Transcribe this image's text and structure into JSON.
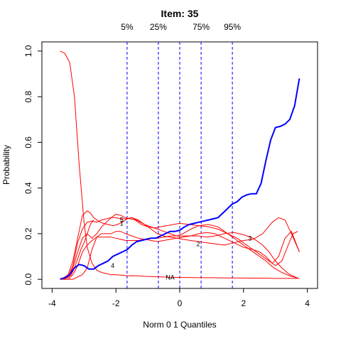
{
  "chart_data": {
    "type": "line",
    "title": "Item:  35",
    "xlabel": "Norm 0 1 Quantiles",
    "ylabel": "Probability",
    "xlim": [
      -4,
      4
    ],
    "ylim": [
      0,
      1
    ],
    "x_ticks": [
      -4,
      -2,
      0,
      2,
      4
    ],
    "x_tick_labels": [
      "-4",
      "-2",
      "0",
      "2",
      "4"
    ],
    "y_ticks": [
      0,
      0.2,
      0.4,
      0.6,
      0.8,
      1.0
    ],
    "y_tick_labels": [
      "0.0",
      "0.2",
      "0.4",
      "0.6",
      "0.8",
      "1.0"
    ],
    "grid": false,
    "quantiles": [
      {
        "label": "5%",
        "x": -1.65
      },
      {
        "label": "25%",
        "x": -0.67
      },
      {
        "label": "",
        "x": 0.0
      },
      {
        "label": "75%",
        "x": 0.67
      },
      {
        "label": "95%",
        "x": 1.65
      }
    ],
    "colors": {
      "options": "#ff0000",
      "key": "#0000ff",
      "quantile_lines": "#0000ff"
    },
    "series": [
      {
        "name": "4",
        "label_at": [
          -2.1,
          0.06
        ],
        "x": [
          -3.75,
          -3.6,
          -3.45,
          -3.3,
          -3.15,
          -3.0,
          -2.9,
          -2.75,
          -2.6,
          -2.45,
          -2.3,
          -2.15,
          -2.0,
          -1.8,
          -1.65,
          -1.5,
          -1.3,
          -1.1,
          -0.9,
          -0.7,
          -0.5,
          -0.3,
          0.0,
          0.3,
          0.6,
          1.0,
          1.4,
          1.8,
          2.2,
          2.6,
          3.0,
          3.3,
          3.5,
          3.75
        ],
        "values": [
          1.0,
          0.99,
          0.95,
          0.8,
          0.5,
          0.25,
          0.14,
          0.07,
          0.04,
          0.03,
          0.025,
          0.02,
          0.02,
          0.018,
          0.015,
          0.016,
          0.015,
          0.013,
          0.012,
          0.011,
          0.01,
          0.009,
          0.008,
          0.008,
          0.007,
          0.007,
          0.006,
          0.006,
          0.005,
          0.005,
          0.004,
          0.004,
          0.004,
          0.004
        ]
      },
      {
        "name": "5",
        "label_at": [
          -1.82,
          0.26
        ],
        "x": [
          -3.7,
          -3.5,
          -3.35,
          -3.2,
          -3.05,
          -2.9,
          -2.75,
          -2.6,
          -2.45,
          -2.3,
          -2.15,
          -2.0,
          -1.85,
          -1.7,
          -1.55,
          -1.4,
          -1.2,
          -1.0,
          -0.8,
          -0.6,
          -0.4,
          -0.2,
          0.0,
          0.3,
          0.6,
          0.9,
          1.2,
          1.5,
          1.8,
          2.1,
          2.4,
          2.7,
          3.0,
          3.2,
          3.4,
          3.55,
          3.7
        ],
        "values": [
          0.0,
          0.01,
          0.05,
          0.12,
          0.18,
          0.2,
          0.18,
          0.2,
          0.23,
          0.25,
          0.27,
          0.285,
          0.28,
          0.27,
          0.265,
          0.26,
          0.24,
          0.23,
          0.225,
          0.23,
          0.235,
          0.24,
          0.245,
          0.24,
          0.235,
          0.23,
          0.22,
          0.2,
          0.18,
          0.15,
          0.12,
          0.09,
          0.06,
          0.08,
          0.15,
          0.2,
          0.21
        ]
      },
      {
        "name": "1",
        "label_at": [
          -1.82,
          0.245
        ],
        "x": [
          -3.7,
          -3.5,
          -3.35,
          -3.2,
          -3.05,
          -2.9,
          -2.75,
          -2.6,
          -2.45,
          -2.3,
          -2.15,
          -2.0,
          -1.85,
          -1.7,
          -1.5,
          -1.3,
          -1.1,
          -0.9,
          -0.7,
          -0.5,
          -0.3,
          -0.1,
          0.1,
          0.35,
          0.6,
          0.9,
          1.2,
          1.5,
          1.8,
          2.1,
          2.4,
          2.7,
          2.95,
          3.2,
          3.45,
          3.7
        ],
        "values": [
          0.0,
          0.01,
          0.06,
          0.16,
          0.22,
          0.25,
          0.255,
          0.25,
          0.26,
          0.265,
          0.27,
          0.27,
          0.265,
          0.265,
          0.27,
          0.255,
          0.24,
          0.23,
          0.22,
          0.21,
          0.2,
          0.19,
          0.2,
          0.22,
          0.235,
          0.24,
          0.23,
          0.2,
          0.17,
          0.14,
          0.11,
          0.08,
          0.05,
          0.03,
          0.015,
          0.005
        ]
      },
      {
        "name": "2",
        "label_at": [
          0.58,
          0.155
        ],
        "x": [
          -3.7,
          -3.5,
          -3.35,
          -3.2,
          -3.05,
          -2.9,
          -2.8,
          -2.7,
          -2.55,
          -2.4,
          -2.25,
          -2.1,
          -1.95,
          -1.8,
          -1.65,
          -1.5,
          -1.3,
          -1.1,
          -0.9,
          -0.7,
          -0.5,
          -0.3,
          -0.1,
          0.1,
          0.35,
          0.6,
          0.85,
          1.1,
          1.4,
          1.7,
          2.0,
          2.3,
          2.6,
          2.9,
          3.1,
          3.3,
          3.5,
          3.75
        ],
        "values": [
          0.0,
          0.02,
          0.08,
          0.18,
          0.28,
          0.3,
          0.29,
          0.27,
          0.255,
          0.245,
          0.24,
          0.235,
          0.24,
          0.25,
          0.265,
          0.27,
          0.26,
          0.24,
          0.22,
          0.2,
          0.19,
          0.185,
          0.18,
          0.175,
          0.17,
          0.165,
          0.16,
          0.155,
          0.15,
          0.16,
          0.17,
          0.175,
          0.2,
          0.25,
          0.27,
          0.26,
          0.2,
          0.12
        ]
      },
      {
        "name": "3",
        "label_at": [
          2.2,
          0.18
        ],
        "x": [
          -3.7,
          -3.5,
          -3.35,
          -3.2,
          -3.05,
          -2.9,
          -2.75,
          -2.6,
          -2.45,
          -2.3,
          -2.15,
          -2.0,
          -1.85,
          -1.7,
          -1.5,
          -1.3,
          -1.1,
          -0.9,
          -0.7,
          -0.5,
          -0.3,
          -0.1,
          0.1,
          0.35,
          0.6,
          0.85,
          1.1,
          1.4,
          1.7,
          2.0,
          2.3,
          2.6,
          2.8,
          3.0,
          3.2,
          3.45,
          3.7
        ],
        "values": [
          0.0,
          0.0,
          0.02,
          0.06,
          0.12,
          0.15,
          0.17,
          0.185,
          0.185,
          0.185,
          0.185,
          0.18,
          0.175,
          0.17,
          0.17,
          0.17,
          0.175,
          0.18,
          0.18,
          0.185,
          0.19,
          0.19,
          0.19,
          0.19,
          0.19,
          0.185,
          0.19,
          0.2,
          0.205,
          0.195,
          0.18,
          0.15,
          0.12,
          0.08,
          0.05,
          0.02,
          0.005
        ]
      },
      {
        "name": "",
        "label_at": null,
        "x": [
          -3.7,
          -3.5,
          -3.35,
          -3.2,
          -3.05,
          -2.9,
          -2.75,
          -2.6,
          -2.45,
          -2.3,
          -2.15,
          -2.0,
          -1.85,
          -1.7,
          -1.5,
          -1.3,
          -1.1,
          -0.9,
          -0.7,
          -0.5,
          -0.3,
          -0.1,
          0.1,
          0.35,
          0.6,
          0.85,
          1.1,
          1.4,
          1.7,
          2.0,
          2.3,
          2.5,
          2.7,
          2.9,
          3.1,
          3.3,
          3.5,
          3.75
        ],
        "values": [
          0.0,
          0.0,
          0.0,
          0.01,
          0.02,
          0.05,
          0.13,
          0.185,
          0.2,
          0.2,
          0.2,
          0.21,
          0.21,
          0.2,
          0.19,
          0.18,
          0.175,
          0.17,
          0.165,
          0.17,
          0.175,
          0.18,
          0.185,
          0.19,
          0.2,
          0.205,
          0.2,
          0.18,
          0.16,
          0.14,
          0.13,
          0.12,
          0.1,
          0.07,
          0.1,
          0.18,
          0.21,
          0.12
        ]
      },
      {
        "name": "NA",
        "label_at": [
          -0.3,
          0.008
        ],
        "x": [
          -3.7,
          -3.6,
          -3.5,
          -3.4,
          -3.3,
          -3.2,
          -3.1,
          -3.0,
          -2.9,
          -2.8,
          -2.7
        ],
        "values": [
          0.0,
          0.003,
          0.008,
          0.02,
          0.05,
          0.09,
          0.13,
          0.16,
          0.2,
          0.24,
          0.26
        ]
      }
    ],
    "key_series": {
      "x": [
        -3.75,
        -3.55,
        -3.45,
        -3.3,
        -3.15,
        -3.0,
        -2.85,
        -2.7,
        -2.55,
        -2.4,
        -2.25,
        -2.1,
        -1.95,
        -1.8,
        -1.65,
        -1.5,
        -1.35,
        -1.2,
        -1.05,
        -0.9,
        -0.75,
        -0.6,
        -0.45,
        -0.3,
        -0.15,
        0.0,
        0.15,
        0.3,
        0.45,
        0.6,
        0.75,
        0.9,
        1.05,
        1.2,
        1.35,
        1.5,
        1.65,
        1.8,
        1.95,
        2.1,
        2.25,
        2.4,
        2.55,
        2.7,
        2.85,
        3.0,
        3.15,
        3.3,
        3.45,
        3.6,
        3.75
      ],
      "values": [
        0.0,
        0.01,
        0.02,
        0.05,
        0.065,
        0.06,
        0.045,
        0.045,
        0.06,
        0.07,
        0.08,
        0.1,
        0.11,
        0.12,
        0.13,
        0.15,
        0.165,
        0.17,
        0.175,
        0.18,
        0.18,
        0.19,
        0.2,
        0.21,
        0.21,
        0.215,
        0.23,
        0.24,
        0.245,
        0.25,
        0.255,
        0.26,
        0.265,
        0.27,
        0.29,
        0.31,
        0.33,
        0.34,
        0.36,
        0.37,
        0.375,
        0.375,
        0.42,
        0.52,
        0.61,
        0.665,
        0.67,
        0.68,
        0.7,
        0.76,
        0.88
      ]
    }
  }
}
